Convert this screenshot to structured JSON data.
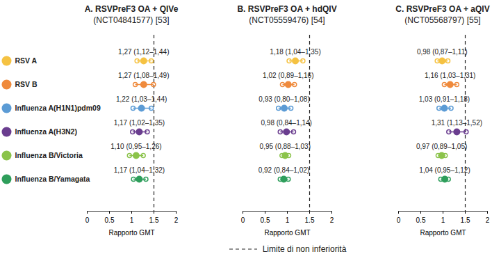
{
  "chart_data": [
    {
      "type": "forest",
      "title": "A. RSVPreF3 OA + QIVe",
      "subtitle": "(NCT04841577) [53]",
      "categories": [
        "RSV A",
        "RSV B",
        "Influenza A(H1N1)pdm09",
        "Influenza A(H3N2)",
        "Influenza B/Victoria",
        "Influenza B/Yamagata"
      ],
      "values": [
        1.27,
        1.27,
        1.22,
        1.17,
        1.1,
        1.17
      ],
      "error_low": [
        1.12,
        1.08,
        1.03,
        1.02,
        0.95,
        1.04
      ],
      "error_high": [
        1.44,
        1.49,
        1.44,
        1.35,
        1.26,
        1.32
      ],
      "value_labels": [
        "1,27 (1,12–1,44)",
        "1,27 (1,08–1,49)",
        "1,22 (1,03–1,44)",
        "1,17 (1,02–1,35)",
        "1,10 (0,95–1,26)",
        "1,17 (1,04–1,32)"
      ],
      "colors": [
        "#f5c242",
        "#ef8a3c",
        "#5b9bd5",
        "#6a3d8f",
        "#8bc34a",
        "#2e9e5b"
      ],
      "data_labels": true,
      "x_label": "Rapporto GMT",
      "xlim": [
        0,
        2
      ],
      "xticks": [
        0,
        0.5,
        1,
        1.5,
        2
      ],
      "threshold": 1.5,
      "line_style": "dashed"
    },
    {
      "type": "forest",
      "title": "B. RSVPreF3 OA + hdQIV",
      "subtitle": "(NCT05559476) [54]",
      "categories": [
        "RSV A",
        "RSV B",
        "Influenza A(H1N1)pdm09",
        "Influenza A(H3N2)",
        "Influenza B/Victoria",
        "Influenza B/Yamagata"
      ],
      "values": [
        1.18,
        1.02,
        0.93,
        0.98,
        0.95,
        0.92
      ],
      "error_low": [
        1.04,
        0.89,
        0.8,
        0.84,
        0.88,
        0.84
      ],
      "error_high": [
        1.35,
        1.16,
        1.08,
        1.14,
        1.03,
        1.02
      ],
      "value_labels": [
        "1,18 (1,04–1,35)",
        "1,02 (0,89–1,16)",
        "0,93 (0,80–1,08)",
        "0,98 (0,84–1,14)",
        "0,95 (0,88–1,03)",
        "0,92 (0,84–1,02)"
      ],
      "colors": [
        "#f5c242",
        "#ef8a3c",
        "#5b9bd5",
        "#6a3d8f",
        "#8bc34a",
        "#2e9e5b"
      ],
      "data_labels": true,
      "tick_labels": "x",
      "x_label": "Rapporto GMT",
      "xlim": [
        0,
        2
      ],
      "xticks": [
        0,
        0.5,
        1,
        1.5,
        2
      ],
      "threshold": 1.5,
      "line_style": "dashed"
    },
    {
      "type": "forest",
      "title": "C. RSVPreF3 OA + aQIV",
      "subtitle": "(NCT05568797) [55]",
      "categories": [
        "RSV A",
        "RSV B",
        "Influenza A(H1N1)pdm09",
        "Influenza A(H3N2)",
        "Influenza B/Victoria",
        "Influenza B/Yamagata"
      ],
      "values": [
        0.98,
        1.16,
        1.03,
        1.31,
        0.97,
        1.04
      ],
      "error_low": [
        0.87,
        1.03,
        0.91,
        1.13,
        0.89,
        0.95
      ],
      "error_high": [
        1.11,
        1.31,
        1.18,
        1.52,
        1.05,
        1.12
      ],
      "value_labels": [
        "0,98 (0,87–1,11)",
        "1,16 (1,03–1,31)",
        "1,03 (0,91–1,18)",
        "1,31 (1,13–1,52)",
        "0,97 (0,89–1,05)",
        "1,04 (0,95–1,12)"
      ],
      "colors": [
        "#f5c242",
        "#ef8a3c",
        "#5b9bd5",
        "#6a3d8f",
        "#8bc34a",
        "#2e9e5b"
      ],
      "data_labels": true,
      "tick_labels": "x",
      "x_label": "Rapporto GMT",
      "xlim": [
        0,
        2
      ],
      "xticks": [
        0,
        0.5,
        1,
        1.5,
        2
      ],
      "threshold": 1.5,
      "line_style": "dashed"
    }
  ],
  "threshold_label": "Limite di non inferiorità"
}
